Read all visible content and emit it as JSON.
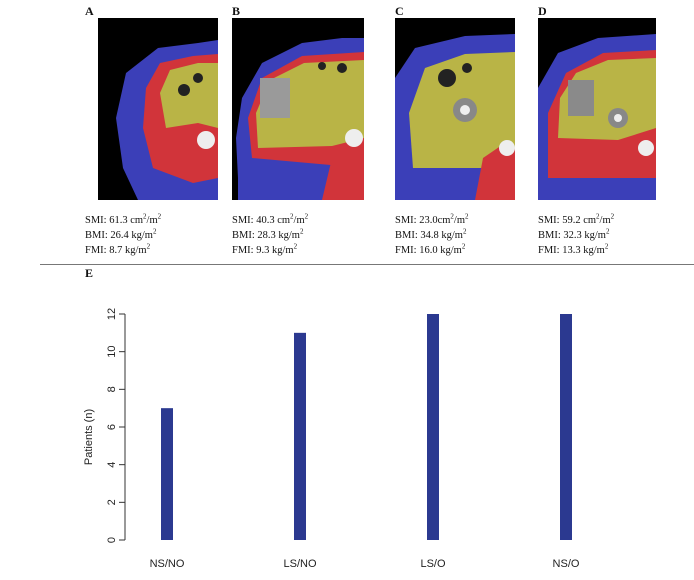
{
  "panels": [
    {
      "letter": "A",
      "smi": "SMI: 61.3 cm",
      "smi_unit": "2",
      "smi_tail": "/m",
      "smi_unit2": "2",
      "bmi": "BMI: 26.4 kg/m",
      "bmi_exp": "2",
      "fmi": "FMI: 8.7 kg/m",
      "fmi_exp": "2"
    },
    {
      "letter": "B",
      "smi": "SMI: 40.3 cm",
      "smi_unit": "2",
      "smi_tail": "/m",
      "smi_unit2": "2",
      "bmi": "BMI: 28.3 kg/m",
      "bmi_exp": "2",
      "fmi": "FMI: 9.3 kg/m",
      "fmi_exp": "2"
    },
    {
      "letter": "C",
      "smi": "SMI: 23.0cm",
      "smi_unit": "2",
      "smi_tail": "/m",
      "smi_unit2": "2",
      "bmi": "BMI: 34.8 kg/m",
      "bmi_exp": "2",
      "fmi": "FMI: 16.0 kg/m",
      "fmi_exp": "2"
    },
    {
      "letter": "D",
      "smi": "SMI: 59.2 cm",
      "smi_unit": "2",
      "smi_tail": "/m",
      "smi_unit2": "2",
      "bmi": "BMI: 32.3 kg/m",
      "bmi_exp": "2",
      "fmi": "FMI: 13.3 kg/m",
      "fmi_exp": "2"
    }
  ],
  "chart_letter": "E",
  "colors": {
    "bar": "#2b3990",
    "subcutaneous_fat": "#3b3fb8",
    "muscle": "#d1343a",
    "visceral": "#b9b446",
    "background": "#000000"
  },
  "chart_data": {
    "type": "bar",
    "categories": [
      "NS/NO",
      "LS/NO",
      "LS/O",
      "NS/O"
    ],
    "values": [
      7,
      11,
      12,
      12
    ],
    "title": "",
    "xlabel": "",
    "ylabel": "Patients (n)",
    "ylim": [
      0,
      12
    ],
    "yticks": [
      "0",
      "2",
      "4",
      "6",
      "8",
      "10",
      "12"
    ],
    "grid": false
  }
}
